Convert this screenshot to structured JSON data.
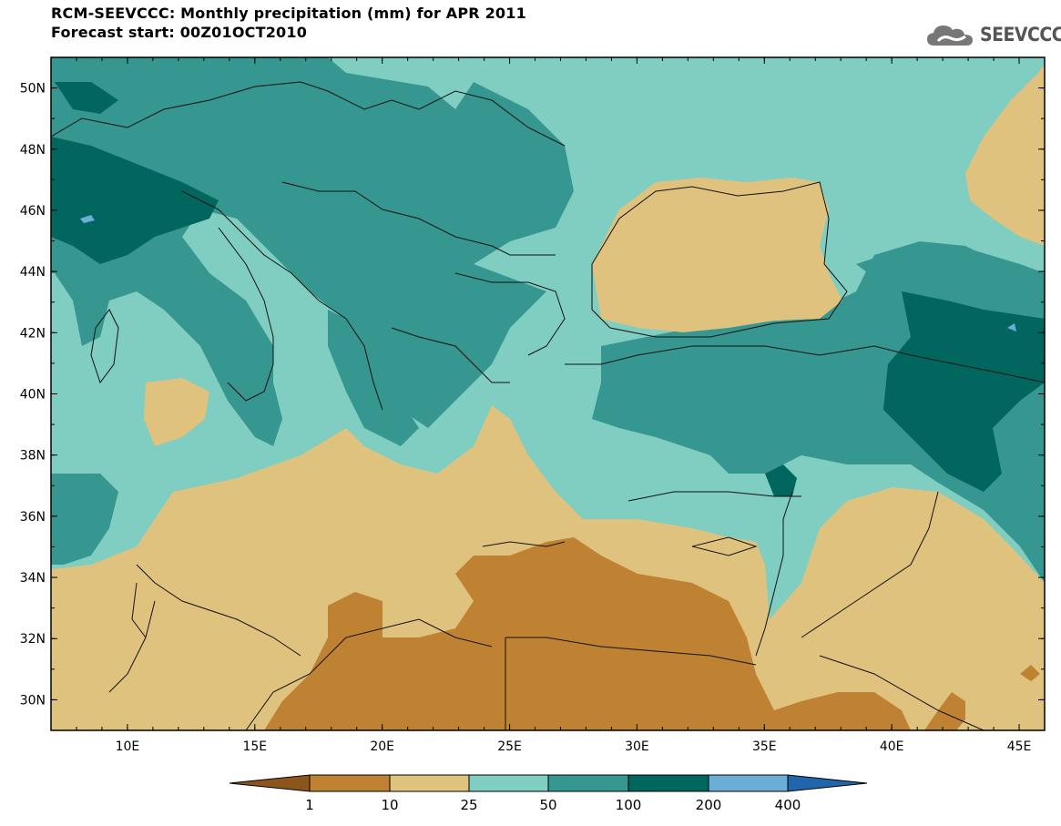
{
  "header": {
    "title_line1": "RCM-SEEVCCC: Monthly precipitation (mm) for APR 2011",
    "title_line2": "Forecast start: 00Z01OCT2010",
    "logo_text": "SEEVCCC",
    "logo_icon": "cloud-icon"
  },
  "map": {
    "lon_range": [
      7,
      46
    ],
    "lat_range": [
      29,
      51
    ],
    "lat_labels": [
      "50N",
      "48N",
      "46N",
      "44N",
      "42N",
      "40N",
      "38N",
      "36N",
      "34N",
      "32N",
      "30N"
    ],
    "lon_labels": [
      "10E",
      "15E",
      "20E",
      "25E",
      "30E",
      "35E",
      "40E",
      "45E"
    ]
  },
  "colorbar": {
    "labels": [
      "1",
      "10",
      "25",
      "50",
      "100",
      "200",
      "400"
    ],
    "colors": {
      "lt1": "#8c5519",
      "c1_10": "#bf8132",
      "c10_25": "#dfc27e",
      "c25_50": "#80cdc1",
      "c50_100": "#35978f",
      "c100_200": "#01665e",
      "c200_400": "#6aaed6",
      "gt400": "#2166ac"
    }
  }
}
